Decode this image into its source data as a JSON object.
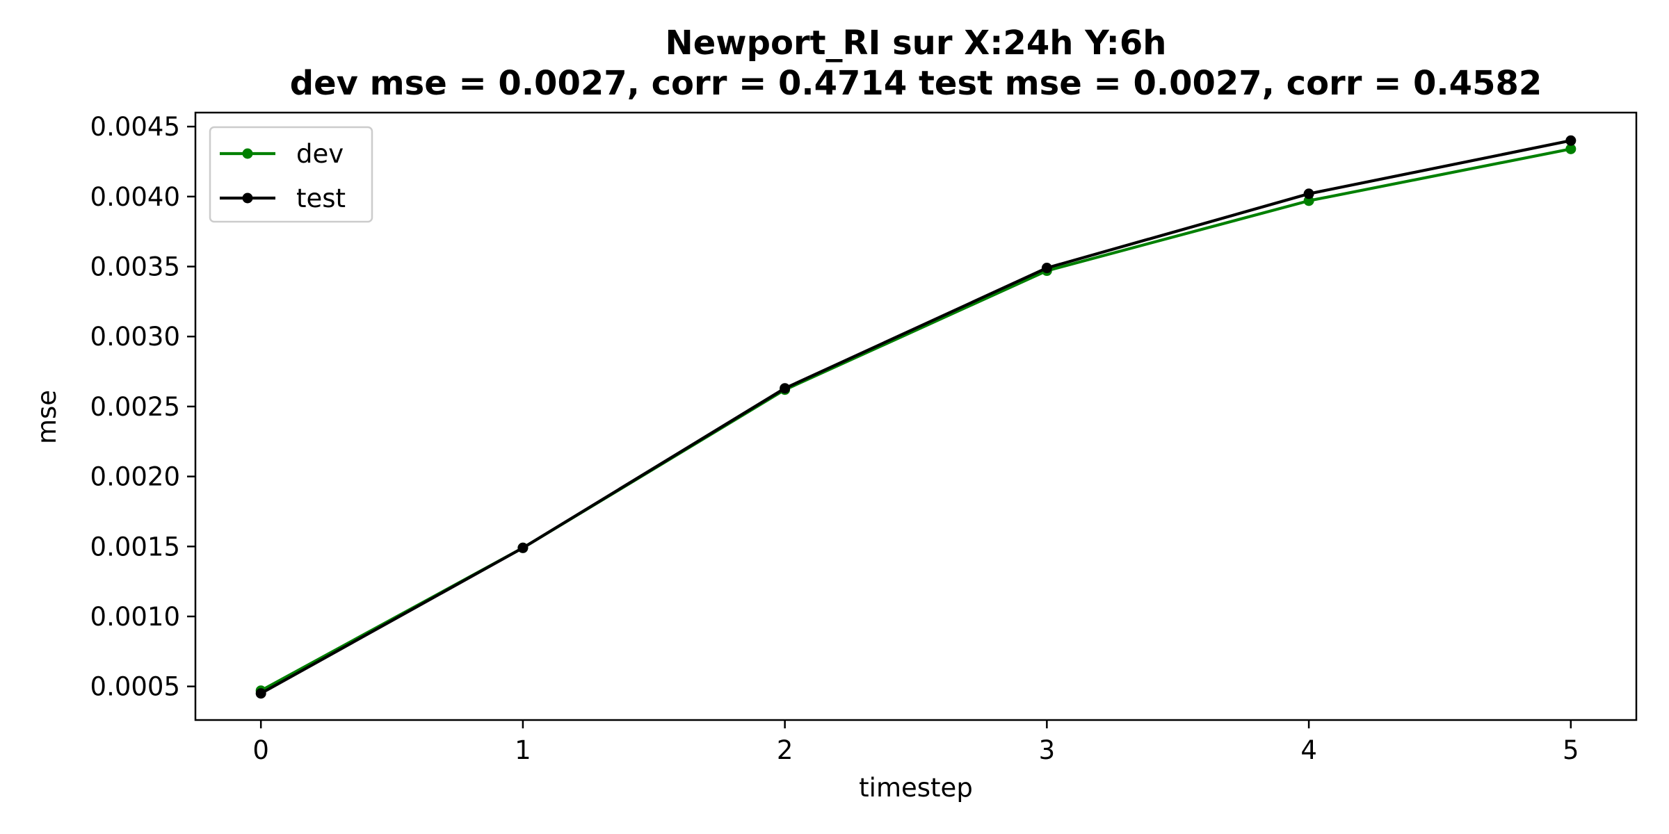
{
  "chart_data": {
    "type": "line",
    "title_line1": "Newport_RI   sur   X:24h   Y:6h",
    "title_line2": "dev mse = 0.0027, corr = 0.4714   test mse = 0.0027, corr = 0.4582",
    "xlabel": "timestep",
    "ylabel": "mse",
    "x": [
      0,
      1,
      2,
      3,
      4,
      5
    ],
    "xticks": [
      "0",
      "1",
      "2",
      "3",
      "4",
      "5"
    ],
    "yticks": [
      "0.0005",
      "0.0010",
      "0.0015",
      "0.0020",
      "0.0025",
      "0.0030",
      "0.0035",
      "0.0040",
      "0.0045"
    ],
    "xlim": [
      -0.25,
      5.25
    ],
    "ylim": [
      0.00026,
      0.0046
    ],
    "grid": false,
    "legend_position": "upper-left",
    "series": [
      {
        "name": "dev",
        "color": "#008000",
        "values": [
          0.00047,
          0.00149,
          0.00262,
          0.00347,
          0.00397,
          0.00434
        ]
      },
      {
        "name": "test",
        "color": "#000000",
        "values": [
          0.00045,
          0.00149,
          0.00263,
          0.00349,
          0.00402,
          0.0044
        ]
      }
    ]
  }
}
